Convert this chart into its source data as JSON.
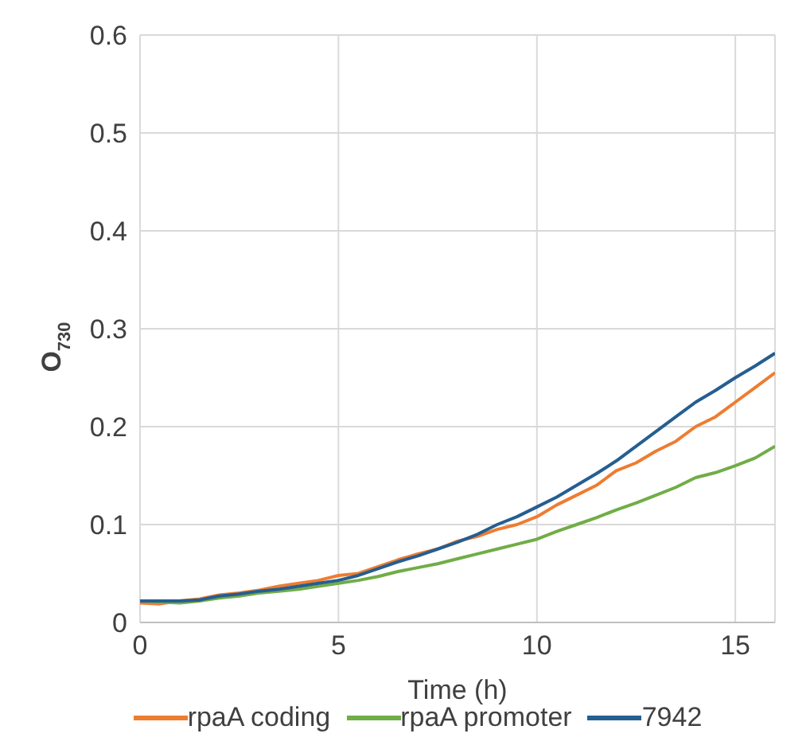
{
  "chart_data": {
    "type": "line",
    "xlabel": "Time (h)",
    "ylabel": "O$_{730}$",
    "x": [
      0,
      0.5,
      1,
      1.5,
      2,
      2.5,
      3,
      3.5,
      4,
      4.5,
      5,
      5.5,
      6,
      6.5,
      7,
      7.5,
      8,
      8.5,
      9,
      9.5,
      10,
      10.5,
      11,
      11.5,
      12,
      12.5,
      13,
      13.5,
      14,
      14.5,
      15,
      15.5,
      16
    ],
    "series": [
      {
        "name": "rpaA coding",
        "color": "#ed7d31",
        "values": [
          0.02,
          0.019,
          0.022,
          0.024,
          0.028,
          0.03,
          0.033,
          0.037,
          0.04,
          0.043,
          0.048,
          0.05,
          0.057,
          0.064,
          0.07,
          0.075,
          0.083,
          0.088,
          0.095,
          0.1,
          0.108,
          0.12,
          0.13,
          0.14,
          0.155,
          0.163,
          0.175,
          0.185,
          0.2,
          0.21,
          0.225,
          0.24,
          0.255
        ]
      },
      {
        "name": "rpaA promoter",
        "color": "#70ad47",
        "values": [
          0.022,
          0.021,
          0.02,
          0.022,
          0.025,
          0.027,
          0.03,
          0.032,
          0.034,
          0.037,
          0.04,
          0.043,
          0.047,
          0.052,
          0.056,
          0.06,
          0.065,
          0.07,
          0.075,
          0.08,
          0.085,
          0.093,
          0.1,
          0.107,
          0.115,
          0.122,
          0.13,
          0.138,
          0.148,
          0.153,
          0.16,
          0.168,
          0.18
        ]
      },
      {
        "name": "7942",
        "color": "#255e91",
        "values": [
          0.022,
          0.022,
          0.022,
          0.023,
          0.027,
          0.029,
          0.032,
          0.034,
          0.037,
          0.04,
          0.043,
          0.048,
          0.055,
          0.062,
          0.068,
          0.075,
          0.082,
          0.09,
          0.1,
          0.108,
          0.118,
          0.128,
          0.14,
          0.152,
          0.165,
          0.18,
          0.195,
          0.21,
          0.225,
          0.237,
          0.25,
          0.262,
          0.275
        ]
      }
    ],
    "xlim": [
      0,
      16
    ],
    "xticks": [
      0,
      5,
      10,
      15
    ],
    "ylim": [
      0,
      0.6
    ],
    "yticks": [
      0,
      0.1,
      0.2,
      0.3,
      0.4,
      0.5,
      0.6
    ],
    "grid": true,
    "legend": "bottom",
    "marker": "none",
    "line_style": "solid"
  }
}
